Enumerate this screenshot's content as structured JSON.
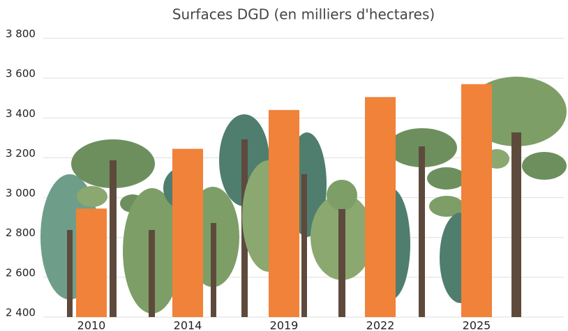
{
  "chart_data": {
    "type": "bar",
    "title": "Surfaces DGD (en milliers d'hectares)",
    "categories": [
      "2010",
      "2014",
      "2019",
      "2022",
      "2025"
    ],
    "values": [
      2945,
      3245,
      3440,
      3505,
      3570
    ],
    "color": "#f0823a",
    "ylim": [
      2400,
      3800
    ],
    "yticks": [
      {
        "value": 2400,
        "label": "2 400"
      },
      {
        "value": 2600,
        "label": "2 600"
      },
      {
        "value": 2800,
        "label": "2 800"
      },
      {
        "value": 3000,
        "label": "3 000"
      },
      {
        "value": 3200,
        "label": "3 200"
      },
      {
        "value": 3400,
        "label": "3 400"
      },
      {
        "value": 3600,
        "label": "3 600"
      },
      {
        "value": 3800,
        "label": "3 800"
      }
    ],
    "grid": true
  }
}
